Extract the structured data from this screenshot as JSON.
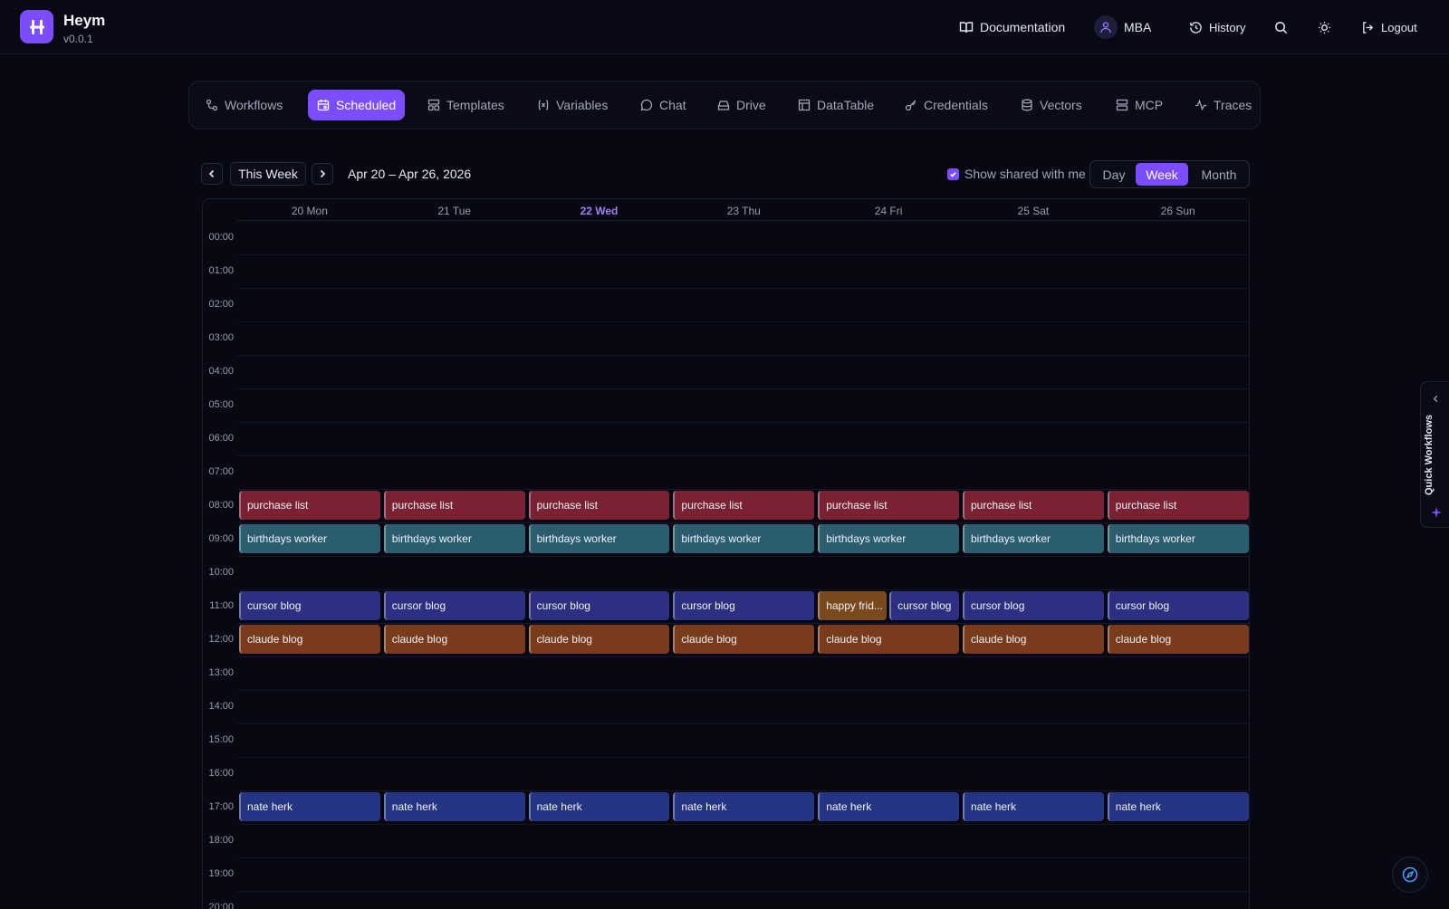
{
  "app": {
    "name": "Heym",
    "version": "v0.0.1"
  },
  "header": {
    "documentation": "Documentation",
    "user": "MBA",
    "history": "History",
    "logout": "Logout"
  },
  "nav": {
    "tabs": [
      {
        "label": "Workflows",
        "icon": "workflows-icon"
      },
      {
        "label": "Scheduled",
        "icon": "calendar-icon",
        "active": true
      },
      {
        "label": "Templates",
        "icon": "templates-icon"
      },
      {
        "label": "Variables",
        "icon": "variables-icon"
      },
      {
        "label": "Chat",
        "icon": "chat-icon"
      },
      {
        "label": "Drive",
        "icon": "drive-icon"
      },
      {
        "label": "DataTable",
        "icon": "table-icon"
      },
      {
        "label": "Credentials",
        "icon": "key-icon"
      },
      {
        "label": "Vectors",
        "icon": "database-icon"
      },
      {
        "label": "MCP",
        "icon": "server-icon"
      },
      {
        "label": "Traces",
        "icon": "activity-icon"
      }
    ]
  },
  "calendar": {
    "this_week": "This Week",
    "range": "Apr 20 – Apr 26, 2026",
    "show_shared": "Show shared with me",
    "show_shared_checked": true,
    "views": [
      "Day",
      "Week",
      "Month"
    ],
    "active_view": "Week",
    "days": [
      "20 Mon",
      "21 Tue",
      "22 Wed",
      "23 Thu",
      "24 Fri",
      "25 Sat",
      "26 Sun"
    ],
    "today_index": 2,
    "hours": [
      "00:00",
      "01:00",
      "02:00",
      "03:00",
      "04:00",
      "05:00",
      "06:00",
      "07:00",
      "08:00",
      "09:00",
      "10:00",
      "11:00",
      "12:00",
      "13:00",
      "14:00",
      "15:00",
      "16:00",
      "17:00",
      "18:00",
      "19:00",
      "20:00"
    ],
    "events": [
      {
        "title": "purchase list",
        "hour": 8,
        "days": [
          0,
          1,
          2,
          3,
          4,
          5,
          6
        ],
        "color": "#7a2233"
      },
      {
        "title": "birthdays worker",
        "hour": 9,
        "days": [
          0,
          1,
          2,
          3,
          4,
          5,
          6
        ],
        "color": "#2a5e6e"
      },
      {
        "title": "cursor blog",
        "hour": 11,
        "days": [
          0,
          1,
          2,
          3,
          5,
          6
        ],
        "color": "#2d2f82"
      },
      {
        "title": "happy frid...",
        "hour": 11,
        "days": [
          4
        ],
        "color": "#7a4a1e",
        "split": "left"
      },
      {
        "title": "cursor blog",
        "hour": 11,
        "days": [
          4
        ],
        "color": "#2d2f82",
        "split": "right"
      },
      {
        "title": "claude blog",
        "hour": 12,
        "days": [
          0,
          1,
          2,
          3,
          4,
          5,
          6
        ],
        "color": "#7a3b1d"
      },
      {
        "title": "nate herk",
        "hour": 17,
        "days": [
          0,
          1,
          2,
          3,
          4,
          5,
          6
        ],
        "color": "#253584"
      }
    ]
  },
  "side_panel": {
    "label": "Quick Workflows"
  }
}
